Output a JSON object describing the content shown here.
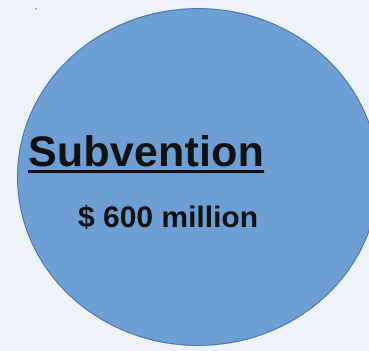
{
  "diagram": {
    "circle": {
      "title": "Subvention",
      "amount": "$ 600 million",
      "fill_color": "#6d9fd4",
      "border_color": "#3f6fa5"
    },
    "background_color": "#eef2f9"
  }
}
